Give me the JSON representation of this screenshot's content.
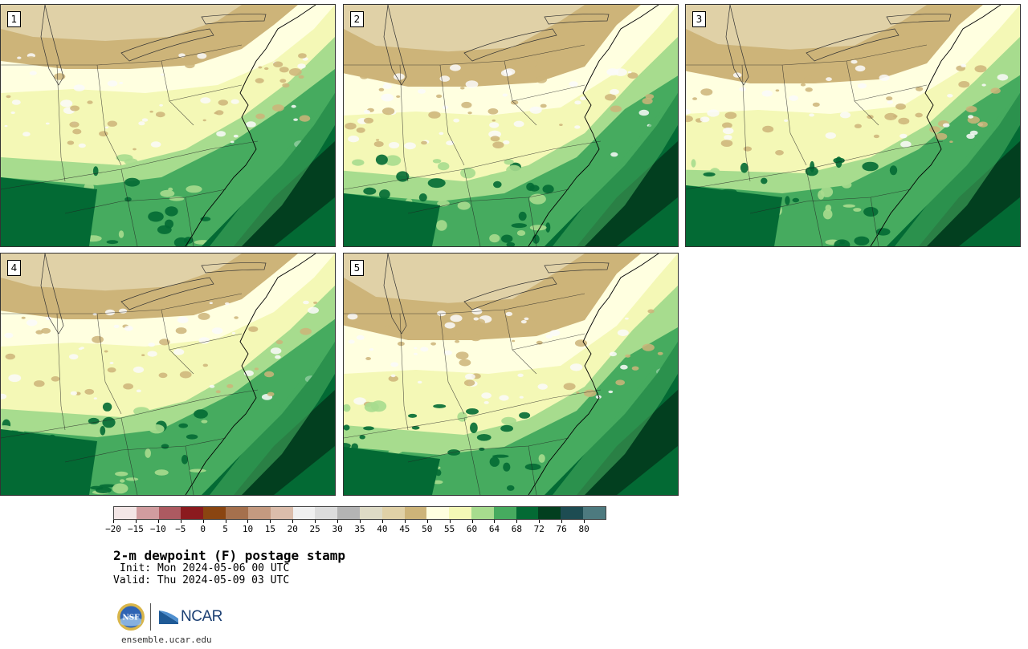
{
  "panels": [
    {
      "label": "1",
      "variant": 0
    },
    {
      "label": "2",
      "variant": 1
    },
    {
      "label": "3",
      "variant": 2
    },
    {
      "label": "4",
      "variant": 3
    },
    {
      "label": "5",
      "variant": 4
    }
  ],
  "colorbar": {
    "colors": [
      "#f3e6e6",
      "#d19c9f",
      "#ad5a61",
      "#8b1a1e",
      "#8a4511",
      "#a5704d",
      "#c49a80",
      "#dbbdab",
      "#f0f0f0",
      "#dcdcdc",
      "#b4b4b4",
      "#dedbc6",
      "#e0d1a7",
      "#cdb479",
      "#ffffe0",
      "#f4f8b6",
      "#a7dc8e",
      "#46ab5f",
      "#036a34",
      "#023f1f",
      "#1d4c52",
      "#4d7a7f"
    ],
    "tick_labels": [
      "−20",
      "−15",
      "−10",
      "−5",
      "0",
      "5",
      "10",
      "15",
      "20",
      "25",
      "30",
      "35",
      "40",
      "45",
      "50",
      "55",
      "60",
      "64",
      "68",
      "72",
      "76",
      "80"
    ]
  },
  "title": "2-m dewpoint (F) postage stamp",
  "init": "Init: Mon 2024-05-06 00 UTC",
  "valid": "Valid: Thu 2024-05-09 03 UTC",
  "footer": {
    "logo_nsf": "NSF",
    "logo_ncar": "NCAR",
    "url": "ensemble.ucar.edu"
  }
}
